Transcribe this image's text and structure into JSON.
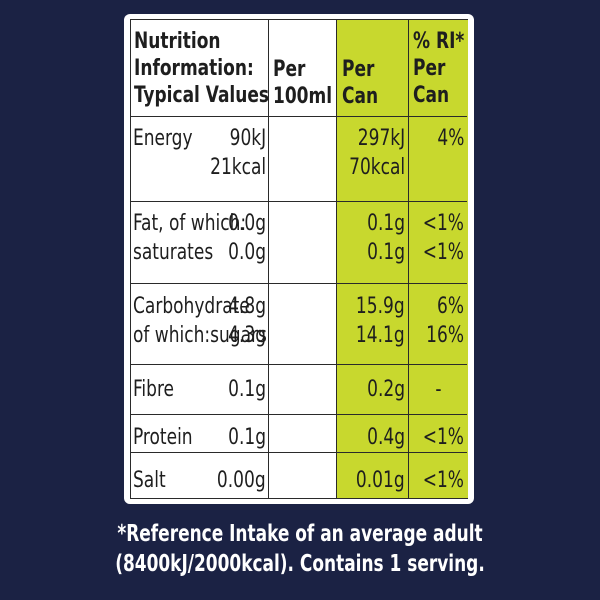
{
  "header": {
    "col1": "Nutrition\nInformation:\nTypical Values",
    "col2": "Per\n100ml",
    "col3": "Per\nCan",
    "col4": "% RI*\nPer\nCan"
  },
  "rows": {
    "energy": {
      "label": "Energy",
      "per100": "90kJ\n21kcal",
      "percan": "297kJ\n70kcal",
      "ri": "4%"
    },
    "fat": {
      "label": "Fat, of which:\nsaturates",
      "per100": "0.0g\n0.0g",
      "percan": "0.1g\n0.1g",
      "ri": "<1%\n<1%"
    },
    "carbs": {
      "label": "Carbohydrate\nof which:sugars",
      "per100": "4.8g\n4.3g",
      "percan": "15.9g\n14.1g",
      "ri": "6%\n16%"
    },
    "fibre": {
      "label": "Fibre",
      "per100": "0.1g",
      "percan": "0.2g",
      "ri": "-"
    },
    "protein": {
      "label": "Protein",
      "per100": "0.1g",
      "percan": "0.4g",
      "ri": "<1%"
    },
    "salt": {
      "label": "Salt",
      "per100": "0.00g",
      "percan": "0.01g",
      "ri": "<1%"
    }
  },
  "footnote": "*Reference Intake of an average adult\n(8400kJ/2000kcal). Contains 1 serving.",
  "colors": {
    "background": "#1b2244",
    "highlight": "#c8d82e",
    "panel": "#ffffff",
    "text": "#1e1e1e"
  }
}
